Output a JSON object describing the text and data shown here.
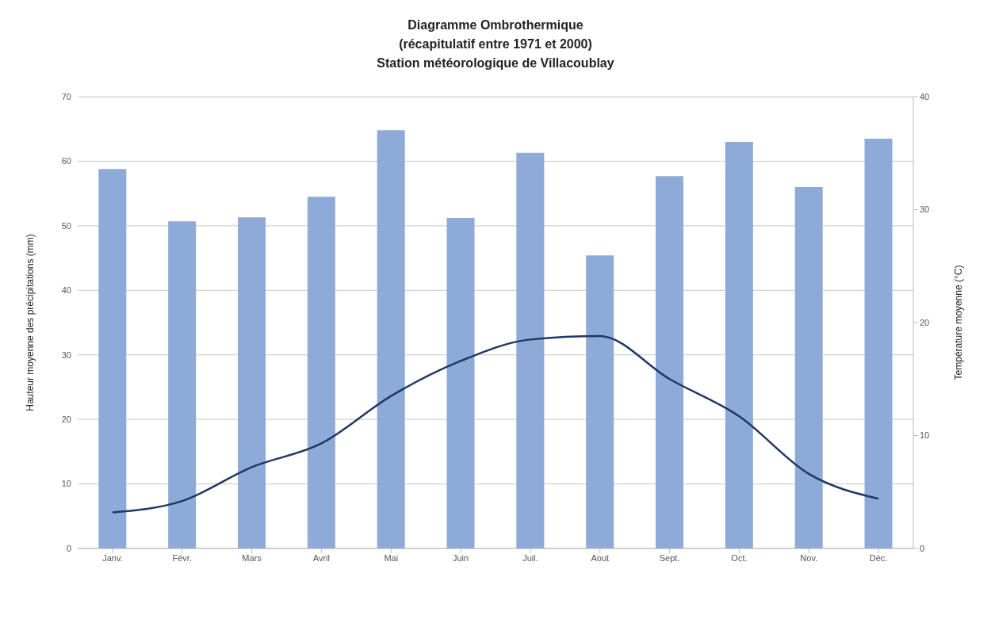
{
  "chart_data": {
    "type": "bar",
    "title": "Diagramme Ombrothermique\n(récapitulatif entre 1971 et 2000)\nStation météorologique de Villacoublay",
    "ylabel": "Hauteur moyenne des précipitations (mm)",
    "y2label": "Température moyenne (°C)",
    "categories": [
      "Janv.",
      "Févr.",
      "Mars",
      "Avril",
      "Mai",
      "Juin",
      "Juil.",
      "Aout",
      "Sept.",
      "Oct.",
      "Nov.",
      "Déc."
    ],
    "series": [
      {
        "color": "#8eaad8",
        "values": [
          58.8,
          50.7,
          51.3,
          54.5,
          64.8,
          51.2,
          61.3,
          45.4,
          57.7,
          63.0,
          56.0,
          63.5
        ]
      },
      {
        "type": "line",
        "axis": "y2",
        "color": "#1f3864",
        "values": [
          3.2,
          4.2,
          7.2,
          9.3,
          13.5,
          16.6,
          18.5,
          18.8,
          15.0,
          11.7,
          6.6,
          4.4
        ]
      }
    ],
    "ylim": [
      0,
      70
    ],
    "yticks": [
      0,
      10,
      20,
      30,
      40,
      50,
      60,
      70
    ],
    "y2lim": [
      0,
      40
    ],
    "y2ticks": [
      0,
      10,
      20,
      30,
      40
    ],
    "grid": "y",
    "legend": false,
    "marker": "none",
    "line_style": "solid"
  }
}
